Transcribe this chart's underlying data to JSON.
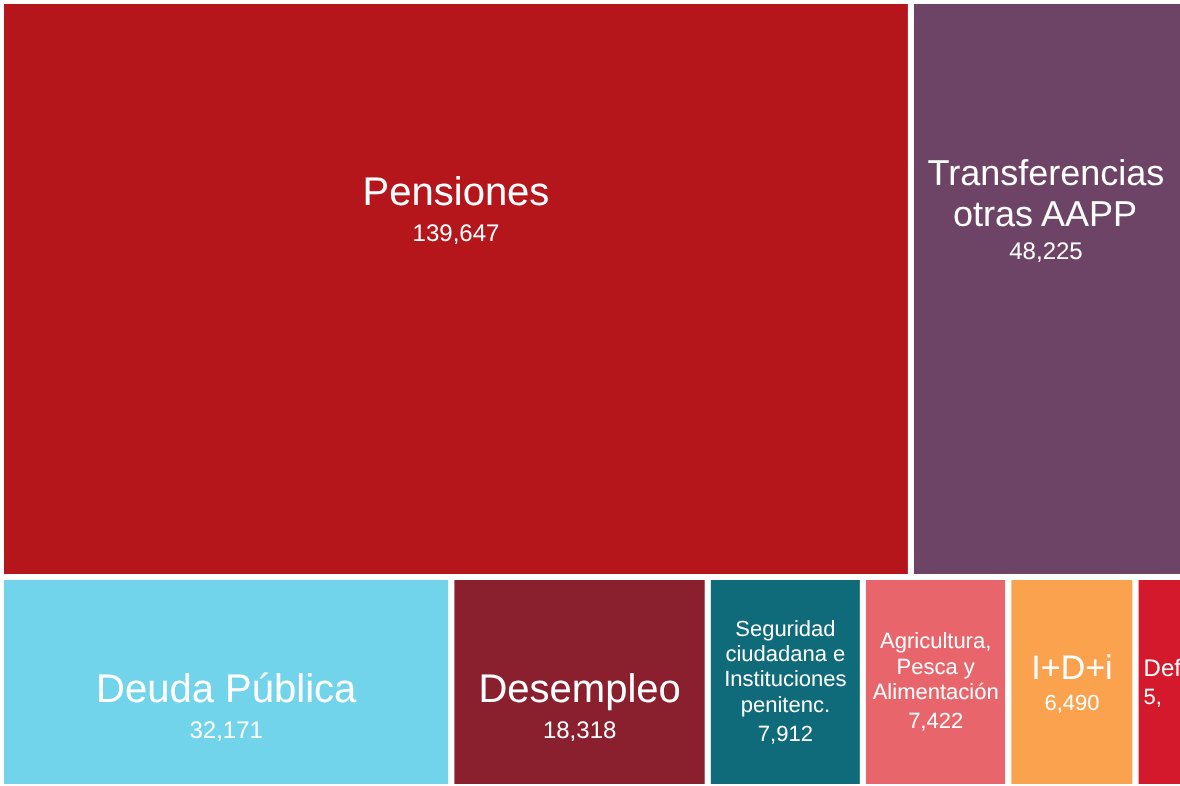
{
  "chart_data": {
    "type": "other",
    "categories": [
      "Pensiones",
      "Transferencias\notras AAPP",
      "Deuda Pública",
      "Desempleo",
      "Seguridad\nciudadana e\nInstituciones\npenitenc.",
      "Agricultura,\nPesca y\nAlimentación",
      "I+D+i",
      "Def"
    ],
    "values": [
      139647,
      48225,
      32171,
      18318,
      7912,
      7422,
      6490,
      null
    ],
    "value_labels": [
      "139,647",
      "48,225",
      "32,171",
      "18,318",
      "7,912",
      "7,422",
      "6,490",
      "5,"
    ],
    "colors": [
      "#b5161b",
      "#6e4466",
      "#72d4ea",
      "#8a1f2e",
      "#0f6a7a",
      "#e8666b",
      "#fba24f",
      "#d4192c"
    ]
  }
}
